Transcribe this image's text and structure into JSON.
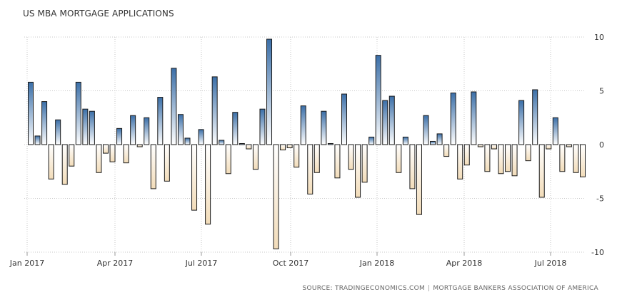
{
  "chart_data": {
    "type": "bar",
    "title": "US MBA MORTGAGE APPLICATIONS",
    "xlabel": "",
    "ylabel": "",
    "ylim": [
      -10,
      10
    ],
    "yticks": [
      "10",
      "5",
      "0",
      "-5",
      "-10"
    ],
    "xticks": [
      "Jan 2017",
      "Apr 2017",
      "Jul 2017",
      "Oct 2017",
      "Jan 2018",
      "Apr 2018",
      "Jul 2018"
    ],
    "grid": true,
    "legend": "none",
    "colors": {
      "positive_top": "#3b6fa8",
      "positive_bottom": "#ffffff",
      "negative_top": "#ffffff",
      "negative_bottom": "#f2dcb9",
      "bar_stroke": "#1a1a1a",
      "grid": "#c8c8c8",
      "text": "#333333"
    },
    "series": [
      {
        "values": [
          5.8,
          0.8,
          4.0,
          -3.2,
          2.3,
          -3.7,
          -2.0,
          5.8,
          3.3,
          3.1,
          -2.6,
          -0.8,
          -1.6,
          1.5,
          -1.7,
          2.7,
          -0.2,
          2.5,
          -4.1,
          4.4,
          -3.4,
          7.1,
          2.8,
          0.6,
          -6.1,
          1.4,
          -7.4,
          6.3,
          0.4,
          -2.7,
          3.0,
          0.1,
          -0.4,
          -2.3,
          3.3,
          9.8,
          -9.7,
          -0.5,
          -0.3,
          -2.1,
          3.6,
          -4.6,
          -2.6,
          3.1,
          0.1,
          -3.1,
          4.7,
          -2.3,
          -4.9,
          -3.5,
          0.7,
          8.3,
          4.1,
          4.5,
          -2.6,
          0.7,
          -4.1,
          -6.5,
          2.7,
          0.3,
          1.0,
          -1.1,
          4.8,
          -3.2,
          -1.9,
          4.9,
          -0.2,
          -2.5,
          -0.4,
          -2.7,
          -2.5,
          -2.9,
          4.1,
          -1.5,
          5.1,
          -4.9,
          -0.4,
          2.5,
          -2.5,
          -0.2,
          -2.6,
          -3.0
        ]
      }
    ]
  },
  "source": {
    "left": "SOURCE: TRADINGECONOMICS.COM",
    "right": "MORTGAGE BANKERS ASSOCIATION OF AMERICA"
  }
}
